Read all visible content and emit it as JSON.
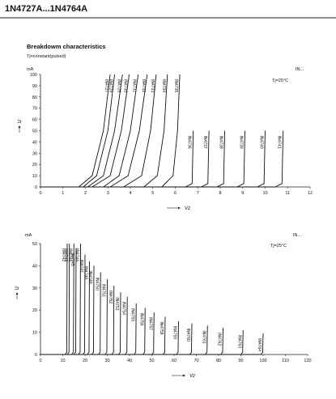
{
  "header": {
    "title": "1N4727A...1N4764A"
  },
  "section": {
    "title": "Breakdowm characteristics",
    "subtitle": "Tj=constant(pulsed)"
  },
  "chart_data": [
    {
      "type": "line",
      "y_unit": "mA",
      "y_label": "Iz",
      "x_label": "Vz",
      "annotations": [
        "IN...",
        "Tj=25°C"
      ],
      "xlim": [
        0,
        12
      ],
      "xticks": [
        0,
        1,
        2,
        3,
        4,
        5,
        6,
        7,
        8,
        9,
        10,
        11,
        12
      ],
      "ylim": [
        0,
        100
      ],
      "yticks": [
        0,
        10,
        20,
        30,
        40,
        50,
        60,
        70,
        80,
        90,
        100
      ],
      "color": "#111111",
      "series": [
        {
          "name": "IN4727",
          "x": [
            0,
            1.7,
            2.3,
            2.8,
            3.1
          ],
          "values": [
            0,
            0,
            10,
            50,
            100
          ]
        },
        {
          "name": "IN4728",
          "x": [
            0,
            1.9,
            2.5,
            3.0,
            3.3
          ],
          "values": [
            0,
            0,
            10,
            50,
            100
          ]
        },
        {
          "name": "IN4729",
          "x": [
            0,
            2.1,
            2.8,
            3.3,
            3.65
          ],
          "values": [
            0,
            0,
            10,
            50,
            100
          ]
        },
        {
          "name": "IN4730",
          "x": [
            0,
            2.3,
            3.1,
            3.6,
            3.95
          ],
          "values": [
            0,
            0,
            10,
            50,
            100
          ]
        },
        {
          "name": "IN4731",
          "x": [
            0,
            2.8,
            3.5,
            4.0,
            4.35
          ],
          "values": [
            0,
            0,
            10,
            50,
            100
          ]
        },
        {
          "name": "IN4732",
          "x": [
            0,
            3.1,
            3.9,
            4.4,
            4.75
          ],
          "values": [
            0,
            0,
            10,
            50,
            100
          ]
        },
        {
          "name": "IN4733",
          "x": [
            0,
            3.7,
            4.5,
            4.9,
            5.15
          ],
          "values": [
            0,
            0,
            10,
            50,
            100
          ]
        },
        {
          "name": "IN4734",
          "x": [
            0,
            4.6,
            5.2,
            5.5,
            5.65
          ],
          "values": [
            0,
            0,
            10,
            50,
            100
          ]
        },
        {
          "name": "IN4735",
          "x": [
            0,
            5.4,
            5.9,
            6.1,
            6.2
          ],
          "values": [
            0,
            0,
            10,
            50,
            100
          ]
        },
        {
          "name": "IN4736",
          "x": [
            0,
            6.45,
            6.75,
            6.8
          ],
          "values": [
            0,
            0,
            3,
            50
          ]
        },
        {
          "name": "IN4737",
          "x": [
            0,
            7.15,
            7.45,
            7.5
          ],
          "values": [
            0,
            0,
            3,
            50
          ]
        },
        {
          "name": "IN4738",
          "x": [
            0,
            7.85,
            8.15,
            8.2
          ],
          "values": [
            0,
            0,
            3,
            50
          ]
        },
        {
          "name": "IN4739",
          "x": [
            0,
            8.75,
            9.05,
            9.1
          ],
          "values": [
            0,
            0,
            3,
            50
          ]
        },
        {
          "name": "IN4740",
          "x": [
            0,
            9.65,
            9.95,
            10
          ],
          "values": [
            0,
            0,
            3,
            50
          ]
        },
        {
          "name": "IN4741",
          "x": [
            0,
            10.45,
            10.75,
            10.8
          ],
          "values": [
            0,
            0,
            3,
            50
          ]
        }
      ]
    },
    {
      "type": "line",
      "y_unit": "mA",
      "y_label": "Iz",
      "x_label": "Vz",
      "annotations": [
        "IN...",
        "Tj=25°C"
      ],
      "xlim": [
        0,
        120
      ],
      "xticks": [
        0,
        10,
        20,
        30,
        40,
        50,
        60,
        70,
        80,
        90,
        100,
        110,
        120
      ],
      "ylim": [
        0,
        50
      ],
      "yticks": [
        0,
        10,
        20,
        30,
        40,
        50
      ],
      "color": "#111111",
      "series": [
        {
          "name": "IN4742",
          "x": [
            0,
            11,
            11.8,
            12
          ],
          "values": [
            0,
            0,
            1,
            50
          ]
        },
        {
          "name": "IN4743",
          "x": [
            0,
            12,
            12.8,
            13
          ],
          "values": [
            0,
            0,
            1,
            50
          ]
        },
        {
          "name": "IN4744",
          "x": [
            0,
            14,
            14.8,
            15
          ],
          "values": [
            0,
            0,
            1,
            50
          ]
        },
        {
          "name": "IN4745",
          "x": [
            0,
            15,
            15.8,
            16
          ],
          "values": [
            0,
            0,
            1,
            48
          ]
        },
        {
          "name": "IN4746",
          "x": [
            0,
            17,
            17.8,
            18
          ],
          "values": [
            0,
            0,
            1,
            50
          ]
        },
        {
          "name": "IN4747",
          "x": [
            0,
            19,
            19.8,
            20
          ],
          "values": [
            0,
            0,
            1,
            45
          ]
        },
        {
          "name": "IN4748",
          "x": [
            0,
            21,
            21.8,
            22
          ],
          "values": [
            0,
            0,
            1,
            42
          ]
        },
        {
          "name": "IN4749",
          "x": [
            0,
            23,
            23.8,
            24
          ],
          "values": [
            0,
            0,
            1,
            40
          ]
        },
        {
          "name": "IN4750",
          "x": [
            0,
            26,
            26.8,
            27
          ],
          "values": [
            0,
            0,
            1,
            37
          ]
        },
        {
          "name": "IN4751",
          "x": [
            0,
            29,
            29.8,
            30
          ],
          "values": [
            0,
            0,
            1,
            34
          ]
        },
        {
          "name": "IN4752",
          "x": [
            0,
            32,
            32.8,
            33
          ],
          "values": [
            0,
            0,
            1,
            31
          ]
        },
        {
          "name": "IN4753",
          "x": [
            0,
            35,
            35.8,
            36
          ],
          "values": [
            0,
            0,
            1,
            28
          ]
        },
        {
          "name": "IN4754",
          "x": [
            0,
            38,
            38.8,
            39
          ],
          "values": [
            0,
            0,
            1,
            26
          ]
        },
        {
          "name": "IN4755",
          "x": [
            0,
            42,
            42.8,
            43
          ],
          "values": [
            0,
            0,
            1,
            23
          ]
        },
        {
          "name": "IN4756",
          "x": [
            0,
            46,
            46.8,
            47
          ],
          "values": [
            0,
            0,
            1,
            21
          ]
        },
        {
          "name": "IN4757",
          "x": [
            0,
            50,
            50.8,
            51
          ],
          "values": [
            0,
            0,
            1,
            19
          ]
        },
        {
          "name": "IN4758",
          "x": [
            0,
            55,
            55.8,
            56
          ],
          "values": [
            0,
            0,
            1,
            17
          ]
        },
        {
          "name": "IN4759",
          "x": [
            0,
            61,
            61.8,
            62
          ],
          "values": [
            0,
            0,
            1,
            15
          ]
        },
        {
          "name": "IN4760",
          "x": [
            0,
            67,
            67.8,
            68
          ],
          "values": [
            0,
            0,
            1,
            14
          ]
        },
        {
          "name": "IN4761",
          "x": [
            0,
            74,
            74.8,
            75
          ],
          "values": [
            0,
            0,
            1,
            13
          ]
        },
        {
          "name": "IN4762",
          "x": [
            0,
            81,
            81.8,
            82
          ],
          "values": [
            0,
            0,
            1,
            12
          ]
        },
        {
          "name": "IN4763",
          "x": [
            0,
            90,
            90.8,
            91
          ],
          "values": [
            0,
            0,
            1,
            11
          ]
        },
        {
          "name": "IN4764",
          "x": [
            0,
            99,
            99.8,
            100
          ],
          "values": [
            0,
            0,
            1,
            9.5
          ]
        }
      ]
    }
  ]
}
